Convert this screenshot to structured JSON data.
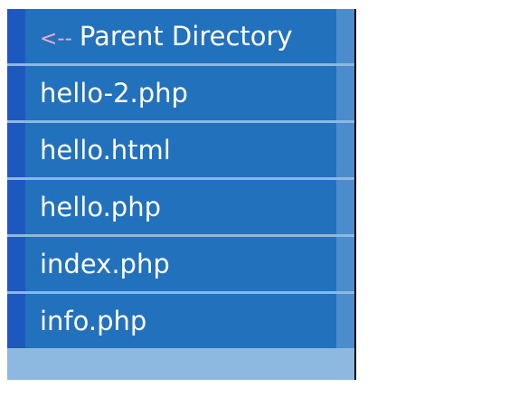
{
  "listing": {
    "parent": {
      "arrow": "<--",
      "label": "Parent Directory"
    },
    "files": [
      {
        "name": "hello-2.php"
      },
      {
        "name": "hello.html"
      },
      {
        "name": "hello.php"
      },
      {
        "name": "index.php"
      },
      {
        "name": "info.php"
      }
    ]
  },
  "colors": {
    "row_background": "#2171bd",
    "left_strip": "#1d58bf",
    "right_strip": "#4d8ccc",
    "separator": "#8db8e0",
    "arrow": "#f0a9c9",
    "text": "#ffffff"
  }
}
